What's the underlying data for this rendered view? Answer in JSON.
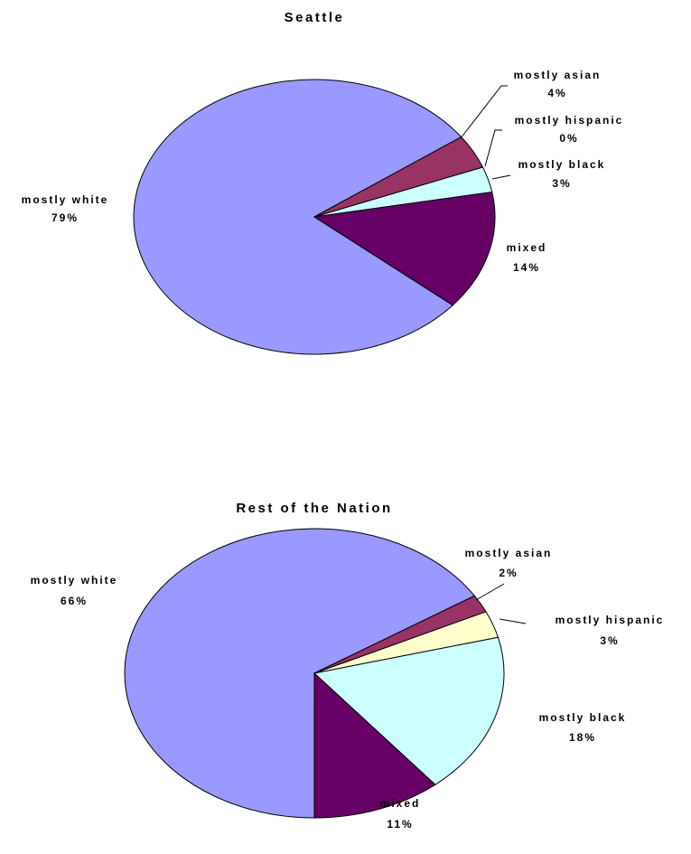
{
  "chart_data": [
    {
      "type": "pie",
      "title": "Seattle",
      "categories": [
        "mostly white",
        "mostly asian",
        "mostly hispanic",
        "mostly black",
        "mixed"
      ],
      "values": [
        79,
        4,
        0,
        3,
        14
      ],
      "value_labels": [
        "79%",
        "4%",
        "0%",
        "3%",
        "14%"
      ],
      "colors": [
        "#9999ff",
        "#993366",
        "#ffffcc",
        "#ccffff",
        "#660066"
      ]
    },
    {
      "type": "pie",
      "title": "Rest of the Nation",
      "categories": [
        "mostly white",
        "mostly asian",
        "mostly hispanic",
        "mostly black",
        "mixed"
      ],
      "values": [
        66,
        2,
        3,
        18,
        11
      ],
      "value_labels": [
        "66%",
        "2%",
        "3%",
        "18%",
        "11%"
      ],
      "colors": [
        "#9999ff",
        "#993366",
        "#ffffcc",
        "#ccffff",
        "#660066"
      ]
    }
  ]
}
